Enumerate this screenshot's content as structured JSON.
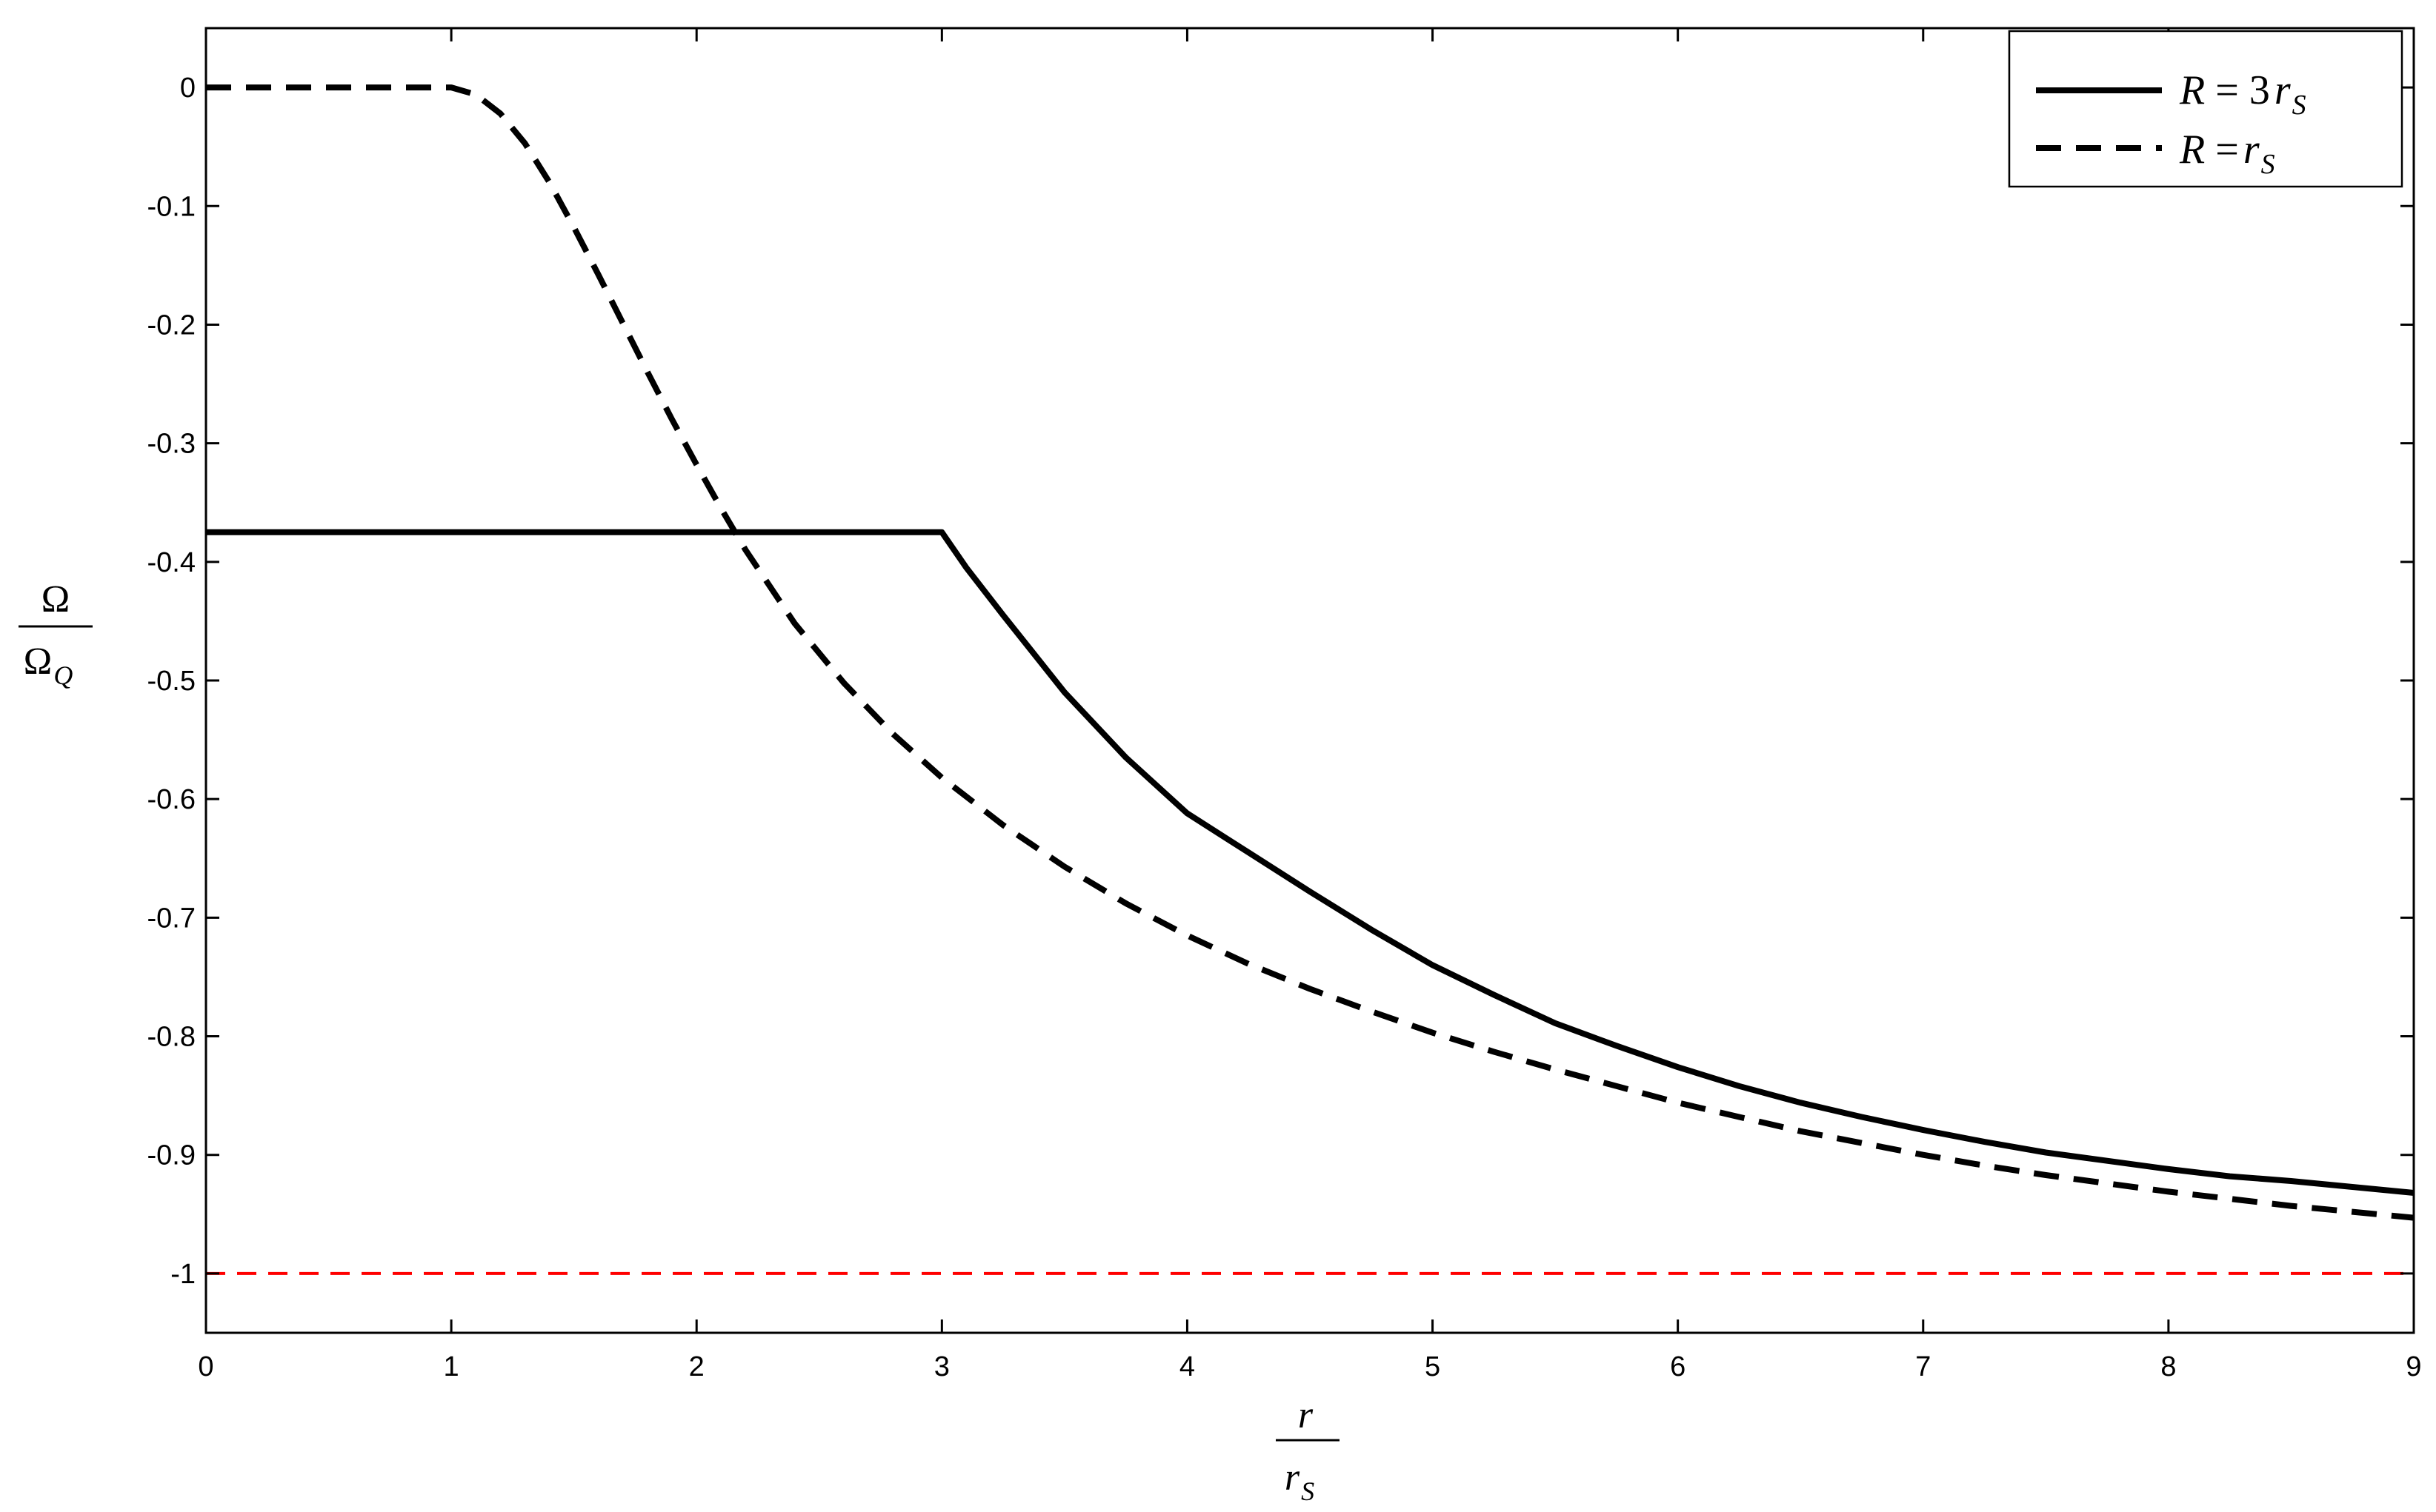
{
  "chart_data": {
    "type": "line",
    "title": "",
    "xlabel": {
      "numerator": "r",
      "denominator": "r",
      "denominator_sub": "S"
    },
    "ylabel": {
      "numerator": "Ω",
      "denominator": "Ω",
      "denominator_sub": "Q"
    },
    "xlim": [
      0,
      9
    ],
    "ylim": [
      -1.05,
      0.05
    ],
    "x_ticks": [
      0,
      1,
      2,
      3,
      4,
      5,
      6,
      7,
      8,
      9
    ],
    "y_ticks": [
      0,
      -0.1,
      -0.2,
      -0.3,
      -0.4,
      -0.5,
      -0.6,
      -0.7,
      -0.8,
      -0.9,
      -1
    ],
    "x_tick_labels": [
      "0",
      "1",
      "2",
      "3",
      "4",
      "5",
      "6",
      "7",
      "8",
      "9"
    ],
    "y_tick_labels": [
      "0",
      "-0.1",
      "-0.2",
      "-0.3",
      "-0.4",
      "-0.5",
      "-0.6",
      "-0.7",
      "-0.8",
      "-0.9",
      "-1"
    ],
    "grid": false,
    "legend_position": "top-right",
    "series": [
      {
        "name": "R = 3r_S",
        "legend": {
          "lhs": "R",
          "op": "=",
          "coef": "3",
          "var": "r",
          "sub": "S"
        },
        "style": "solid",
        "color": "#000000",
        "x": [
          0,
          1,
          2,
          3,
          3.1,
          3.25,
          3.5,
          3.75,
          4,
          4.25,
          4.5,
          4.75,
          5,
          5.25,
          5.5,
          5.75,
          6,
          6.25,
          6.5,
          6.75,
          7,
          7.25,
          7.5,
          7.75,
          8,
          8.25,
          8.5,
          8.75,
          9
        ],
        "y": [
          -0.375,
          -0.375,
          -0.375,
          -0.375,
          -0.405,
          -0.445,
          -0.51,
          -0.565,
          -0.612,
          -0.645,
          -0.678,
          -0.71,
          -0.74,
          -0.765,
          -0.789,
          -0.808,
          -0.826,
          -0.842,
          -0.856,
          -0.868,
          -0.879,
          -0.889,
          -0.898,
          -0.905,
          -0.912,
          -0.918,
          -0.922,
          -0.927,
          -0.932
        ]
      },
      {
        "name": "R = r_S",
        "legend": {
          "lhs": "R",
          "op": "=",
          "coef": "",
          "var": "r",
          "sub": "S"
        },
        "style": "dashed",
        "color": "#000000",
        "x": [
          0,
          0.5,
          1,
          1.1,
          1.2,
          1.3,
          1.4,
          1.5,
          1.6,
          1.7,
          1.8,
          1.9,
          2,
          2.1,
          2.2,
          2.4,
          2.6,
          2.8,
          3,
          3.25,
          3.5,
          3.75,
          4,
          4.25,
          4.5,
          4.75,
          5,
          5.25,
          5.5,
          5.75,
          6,
          6.25,
          6.5,
          6.75,
          7,
          7.25,
          7.5,
          7.75,
          8,
          8.25,
          8.5,
          8.75,
          9
        ],
        "y": [
          0,
          0,
          0,
          -0.006,
          -0.022,
          -0.047,
          -0.08,
          -0.118,
          -0.158,
          -0.199,
          -0.24,
          -0.28,
          -0.318,
          -0.355,
          -0.39,
          -0.452,
          -0.502,
          -0.545,
          -0.582,
          -0.622,
          -0.657,
          -0.688,
          -0.715,
          -0.739,
          -0.76,
          -0.779,
          -0.797,
          -0.813,
          -0.828,
          -0.842,
          -0.856,
          -0.868,
          -0.88,
          -0.89,
          -0.9,
          -0.909,
          -0.917,
          -0.924,
          -0.931,
          -0.937,
          -0.943,
          -0.948,
          -0.953
        ]
      }
    ],
    "reference_lines": [
      {
        "y": -1,
        "style": "dashed",
        "color": "#ff0000"
      }
    ]
  }
}
